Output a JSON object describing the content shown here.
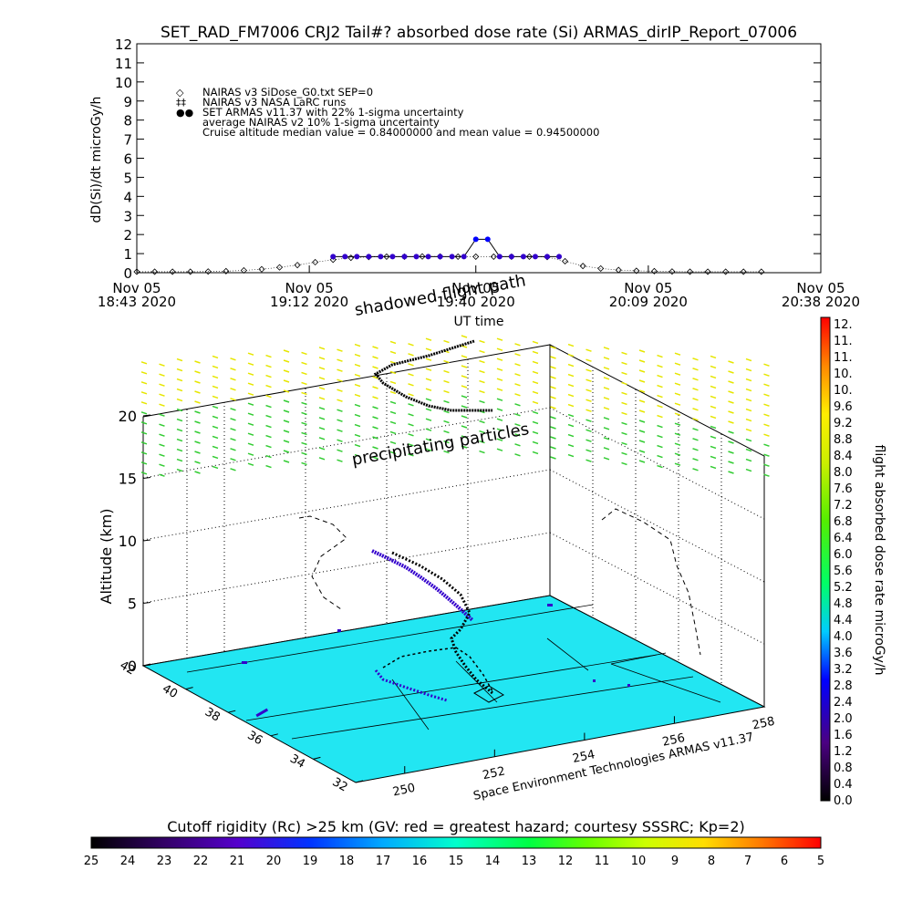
{
  "chart_data": [
    {
      "type": "line",
      "title": "SET_RAD_FM7006  CRJ2 Tail#? absorbed dose rate (Si) ARMAS_dirIP_Report_07006",
      "ylabel": "dD(Si)/dt microGy/h",
      "xlabel": "UT time",
      "ylim": [
        0,
        12
      ],
      "yticks": [
        "0",
        "1",
        "2",
        "3",
        "4",
        "5",
        "6",
        "7",
        "8",
        "9",
        "10",
        "11",
        "12"
      ],
      "xlim_minutes": [
        0,
        115
      ],
      "xticks": [
        {
          "line1": "Nov 05",
          "line2": "18:43 2020",
          "t": 0
        },
        {
          "line1": "Nov 05",
          "line2": "19:12 2020",
          "t": 29
        },
        {
          "line1": "Nov 05",
          "line2": "19:40 2020",
          "t": 57
        },
        {
          "line1": "Nov 05",
          "line2": "20:09 2020",
          "t": 86
        },
        {
          "line1": "Nov 05",
          "line2": "20:38 2020",
          "t": 115
        }
      ],
      "legend": [
        {
          "symbol": "◇",
          "text": "NAIRAS v3 SiDose_G0.txt SEP=0"
        },
        {
          "symbol": "‡‡",
          "text": "NAIRAS v3 NASA LaRC runs"
        },
        {
          "symbol": "●●",
          "text": "SET ARMAS v11.37 with 22% 1-sigma uncertainty"
        },
        {
          "symbol": "",
          "text": "average NAIRAS v2 10% 1-sigma uncertainty"
        },
        {
          "symbol": "",
          "text": "Cruise altitude median value = 0.84000000 and mean value = 0.94500000"
        }
      ],
      "series": [
        {
          "name": "NAIRAS v3 SiDose_G0.txt SEP=0",
          "color": "#000000",
          "x": [
            0,
            3,
            6,
            9,
            12,
            15,
            18,
            21,
            24,
            27,
            30,
            33,
            36,
            39,
            42,
            45,
            48,
            51,
            54,
            57,
            60,
            63,
            66,
            69,
            72,
            75,
            78,
            81,
            84,
            87,
            90,
            93,
            96,
            99,
            102,
            105
          ],
          "y": [
            0.05,
            0.05,
            0.05,
            0.05,
            0.06,
            0.08,
            0.12,
            0.18,
            0.28,
            0.4,
            0.55,
            0.68,
            0.78,
            0.82,
            0.84,
            0.84,
            0.85,
            0.85,
            0.84,
            0.84,
            0.84,
            0.84,
            0.84,
            0.82,
            0.6,
            0.35,
            0.22,
            0.14,
            0.1,
            0.08,
            0.06,
            0.05,
            0.05,
            0.05,
            0.05,
            0.05
          ]
        },
        {
          "name": "SET ARMAS v11.37 with 22% 1-sigma uncertainty",
          "color": "#3300cc",
          "x": [
            33,
            35,
            37,
            39,
            41,
            43,
            45,
            47,
            49,
            51,
            53,
            55,
            57,
            59,
            61,
            63,
            65,
            67,
            69,
            71
          ],
          "y": [
            0.84,
            0.84,
            0.84,
            0.84,
            0.84,
            0.84,
            0.84,
            0.84,
            0.84,
            0.84,
            0.84,
            0.84,
            1.75,
            1.75,
            0.84,
            0.84,
            0.84,
            0.84,
            0.84,
            0.84
          ]
        }
      ]
    },
    {
      "type": "scatter",
      "ylabel": "Altitude (km)",
      "zticks": [
        "0",
        "5",
        "10",
        "15",
        "20"
      ],
      "lat_ticks": [
        "42",
        "40",
        "38",
        "36",
        "34",
        "32"
      ],
      "lon_ticks": [
        "250",
        "252",
        "254",
        "256",
        "258"
      ],
      "annotations": [
        "shadowed flight path",
        "precipitating particles",
        "Space Environment Technologies ARMAS v11.37"
      ],
      "colorbar_label": "flight absorbed dose rate microGy/h",
      "colorbar_ticks": [
        "12.",
        "11.",
        "11.",
        "10.",
        "10.",
        "9.6",
        "9.2",
        "8.8",
        "8.4",
        "8.0",
        "7.6",
        "7.2",
        "6.8",
        "6.4",
        "6.0",
        "5.6",
        "5.2",
        "4.8",
        "4.4",
        "4.0",
        "3.6",
        "3.2",
        "2.8",
        "2.4",
        "2.0",
        "1.6",
        "1.2",
        "0.8",
        "0.4",
        "0.0"
      ]
    },
    {
      "type": "heatmap",
      "title": "Cutoff rigidity (Rc) >25 km (GV: red = greatest hazard; courtesy SSSRC; Kp=2)",
      "ticks": [
        "25",
        "24",
        "23",
        "22",
        "21",
        "20",
        "19",
        "18",
        "17",
        "16",
        "15",
        "14",
        "13",
        "12",
        "11",
        "10",
        "9",
        "8",
        "7",
        "6",
        "5"
      ]
    }
  ],
  "colors": {
    "ground": "#22e6f2",
    "armas": "#3300cc",
    "particles_yellow": "#e6e600",
    "particles_green": "#33cc33"
  }
}
